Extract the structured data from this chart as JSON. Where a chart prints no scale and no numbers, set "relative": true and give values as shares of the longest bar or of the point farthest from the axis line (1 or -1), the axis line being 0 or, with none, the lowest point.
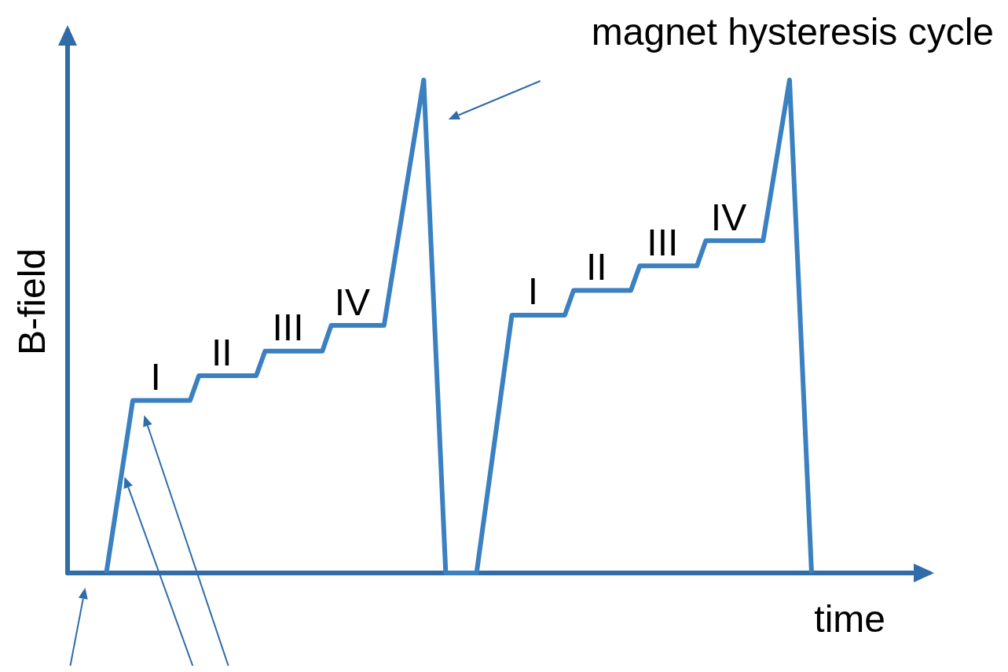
{
  "chart_data": {
    "type": "line",
    "relative": true,
    "xlabel": "time",
    "ylabel": "B-field",
    "color": "#3b80c0",
    "marker": "none",
    "line_style": "solid",
    "grid": false,
    "categories": [
      null,
      null,
      null,
      null,
      null,
      null,
      null,
      null,
      null,
      null,
      null,
      null,
      null,
      null,
      null,
      null,
      null,
      null,
      null,
      null,
      null,
      null,
      null,
      null,
      null,
      null,
      null,
      null,
      null,
      null,
      null,
      null,
      null,
      null,
      null,
      null,
      null,
      null,
      null,
      null,
      null,
      null,
      null,
      null,
      null,
      null,
      null,
      null,
      null,
      null,
      null,
      null,
      null,
      null,
      null,
      null,
      null,
      null,
      null,
      null,
      null,
      null,
      null,
      null,
      null,
      null,
      null,
      null,
      null,
      null,
      null,
      null,
      null,
      null,
      null,
      null,
      null,
      null,
      null,
      null,
      null,
      null,
      null,
      null,
      null,
      null,
      null,
      null,
      null,
      null,
      null,
      null,
      null,
      null,
      null,
      null,
      null,
      null,
      null,
      null,
      null,
      null,
      null,
      null,
      null,
      null,
      null,
      null,
      null,
      null,
      null,
      null,
      null,
      null,
      null,
      null,
      null,
      null,
      null,
      null,
      null,
      null,
      null,
      null,
      null,
      null,
      null,
      null,
      null,
      null,
      null,
      null,
      null,
      null,
      null,
      null,
      null,
      null,
      null,
      null,
      null,
      null,
      null,
      null,
      null,
      null,
      null,
      null,
      null,
      null,
      null,
      null,
      null,
      null,
      null,
      null,
      null,
      null,
      null,
      null,
      null
    ],
    "values": [
      0,
      null,
      null,
      null,
      null,
      null,
      0.35,
      null,
      null,
      null,
      null,
      null,
      null,
      null,
      null,
      null,
      null,
      null,
      null,
      0.35,
      null,
      0.4,
      null,
      null,
      null,
      null,
      null,
      null,
      null,
      null,
      null,
      null,
      null,
      null,
      0.4,
      null,
      0.45,
      null,
      null,
      null,
      null,
      null,
      null,
      null,
      null,
      null,
      null,
      null,
      null,
      0.45,
      null,
      0.502,
      null,
      null,
      null,
      null,
      null,
      null,
      null,
      null,
      null,
      null,
      null,
      0.502,
      null,
      null,
      null,
      null,
      null,
      null,
      null,
      null,
      1,
      null,
      null,
      null,
      null,
      0,
      null,
      null,
      null,
      null,
      null,
      null,
      0,
      null,
      null,
      null,
      null,
      null,
      null,
      null,
      0.523,
      null,
      null,
      null,
      null,
      null,
      null,
      null,
      null,
      null,
      null,
      null,
      0.523,
      null,
      0.573,
      null,
      null,
      null,
      null,
      null,
      null,
      null,
      null,
      null,
      null,
      null,
      null,
      0.573,
      null,
      0.623,
      null,
      null,
      null,
      null,
      null,
      null,
      null,
      null,
      null,
      null,
      null,
      null,
      0.623,
      null,
      0.674,
      null,
      null,
      null,
      null,
      null,
      null,
      null,
      null,
      null,
      null,
      null,
      null,
      0.674,
      null,
      null,
      null,
      null,
      null,
      1,
      null,
      null,
      null,
      null,
      0
    ],
    "annotations": [
      "magnet hysteresis cycle",
      "I",
      "II",
      "III",
      "IV",
      "I",
      "II",
      "III",
      "IV"
    ]
  }
}
